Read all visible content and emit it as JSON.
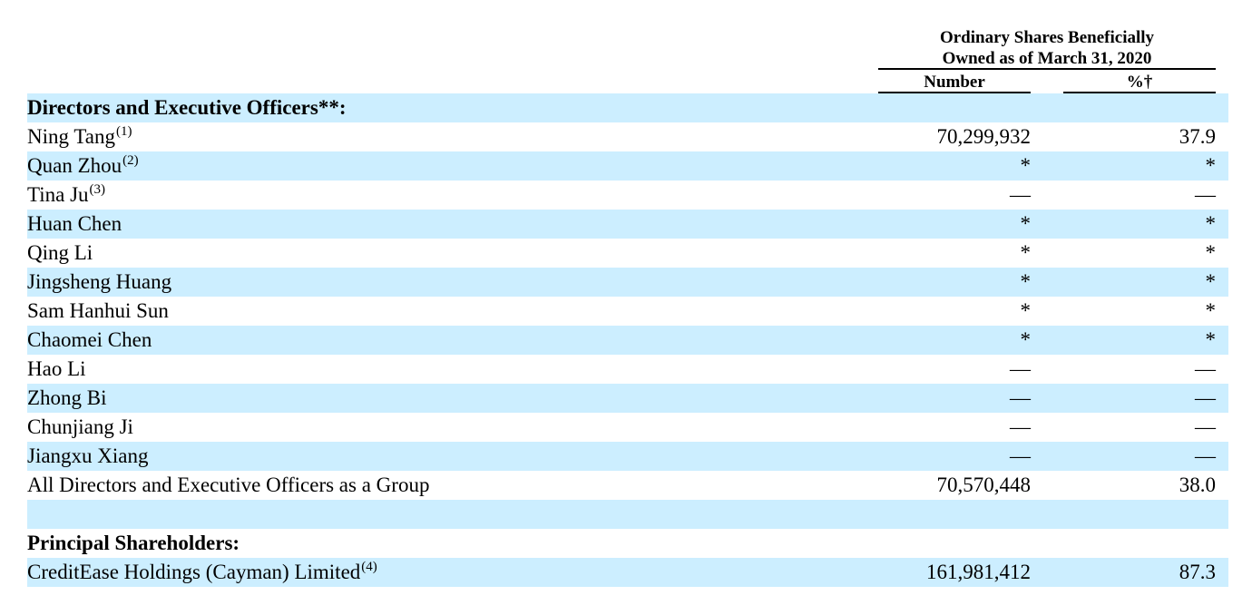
{
  "header": {
    "line1": "Ordinary Shares Beneficially",
    "line2": "Owned as of March 31, 2020",
    "col_number": "Number",
    "col_percent": "%†"
  },
  "rows": [
    {
      "label": "Directors and Executive Officers**:",
      "sup": "",
      "number": "",
      "percent": "",
      "section": true,
      "shaded": true
    },
    {
      "label": "Ning Tang",
      "sup": "(1)",
      "number": "70,299,932",
      "percent": "37.9",
      "section": false,
      "shaded": false
    },
    {
      "label": "Quan Zhou",
      "sup": "(2)",
      "number": "*",
      "percent": "*",
      "section": false,
      "shaded": true
    },
    {
      "label": "Tina Ju",
      "sup": "(3)",
      "number": "—",
      "percent": "—",
      "section": false,
      "shaded": false
    },
    {
      "label": "Huan Chen",
      "sup": "",
      "number": "*",
      "percent": "*",
      "section": false,
      "shaded": true
    },
    {
      "label": "Qing Li",
      "sup": "",
      "number": "*",
      "percent": "*",
      "section": false,
      "shaded": false
    },
    {
      "label": "Jingsheng Huang",
      "sup": "",
      "number": "*",
      "percent": "*",
      "section": false,
      "shaded": true
    },
    {
      "label": "Sam Hanhui Sun",
      "sup": "",
      "number": "*",
      "percent": "*",
      "section": false,
      "shaded": false
    },
    {
      "label": "Chaomei Chen",
      "sup": "",
      "number": "*",
      "percent": "*",
      "section": false,
      "shaded": true
    },
    {
      "label": "Hao Li",
      "sup": "",
      "number": "—",
      "percent": "—",
      "section": false,
      "shaded": false
    },
    {
      "label": "Zhong Bi",
      "sup": "",
      "number": "—",
      "percent": "—",
      "section": false,
      "shaded": true
    },
    {
      "label": "Chunjiang Ji",
      "sup": "",
      "number": "—",
      "percent": "—",
      "section": false,
      "shaded": false
    },
    {
      "label": "Jiangxu Xiang",
      "sup": "",
      "number": "—",
      "percent": "—",
      "section": false,
      "shaded": true
    },
    {
      "label": "All Directors and Executive Officers as a Group",
      "sup": "",
      "number": "70,570,448",
      "percent": "38.0",
      "section": false,
      "shaded": false
    },
    {
      "label": "",
      "sup": "",
      "number": "",
      "percent": "",
      "section": false,
      "shaded": true
    },
    {
      "label": "Principal Shareholders:",
      "sup": "",
      "number": "",
      "percent": "",
      "section": true,
      "shaded": false
    },
    {
      "label": "CreditEase Holdings (Cayman) Limited",
      "sup": "(4)",
      "number": "161,981,412",
      "percent": "87.3",
      "section": false,
      "shaded": true
    }
  ]
}
